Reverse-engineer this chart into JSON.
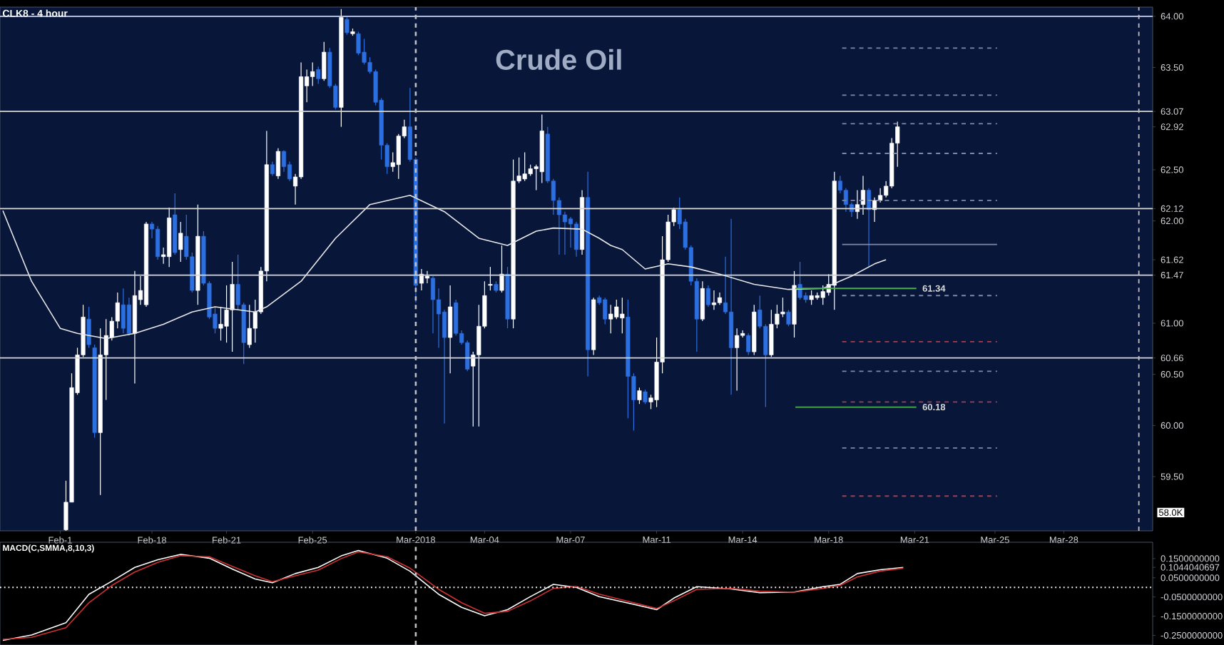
{
  "chart_data": [
    {
      "type": "candlestick",
      "title": "Crude Oil",
      "subtitle": "CLK8 - 4 hour",
      "categories": [
        null,
        null,
        null,
        null,
        null,
        null,
        null,
        null,
        null,
        null,
        "Feb-1",
        null,
        null,
        null,
        null,
        null,
        null,
        null,
        null,
        null,
        null,
        null,
        null,
        null,
        null,
        null,
        "Feb-18",
        null,
        null,
        null,
        null,
        null,
        null,
        null,
        null,
        null,
        null,
        null,
        null,
        "Feb-21",
        null,
        null,
        null,
        null,
        null,
        null,
        null,
        null,
        null,
        null,
        null,
        null,
        null,
        null,
        "Feb-25",
        null,
        null,
        null,
        null,
        null,
        null,
        null,
        null,
        null,
        null,
        null,
        null,
        null,
        null,
        null,
        null,
        null,
        "Mar-2018",
        null,
        null,
        null,
        null,
        null,
        null,
        null,
        null,
        null,
        null,
        null,
        "Mar-04",
        null,
        null,
        null,
        null,
        null,
        null,
        null,
        null,
        null,
        null,
        null,
        null,
        null,
        null,
        "Mar-07",
        null,
        null,
        null,
        null,
        null,
        null,
        null,
        null,
        null,
        null,
        null,
        null,
        null,
        null,
        "Mar-11",
        null,
        null,
        null,
        null,
        null,
        null,
        null,
        null,
        null,
        null,
        null,
        null,
        null,
        null,
        "Mar-14",
        null,
        null,
        null,
        null,
        null,
        null,
        null,
        null,
        null,
        null,
        null,
        null,
        null,
        null,
        "Mar-18",
        null,
        null,
        null,
        null,
        null,
        null,
        null,
        null,
        null,
        null,
        null,
        null,
        null,
        null,
        "Mar-21",
        null,
        null,
        null,
        null,
        null,
        null,
        null,
        null,
        null,
        null,
        null,
        null,
        null,
        "Mar-25",
        null,
        null,
        null,
        null,
        null,
        null,
        null,
        null,
        null,
        null,
        null,
        "Mar-28",
        null,
        null,
        null,
        null,
        null,
        null,
        null,
        null,
        null,
        null,
        null,
        null,
        null,
        null,
        null
      ],
      "ohlc": [
        null,
        null,
        null,
        null,
        null,
        null,
        null,
        null,
        null,
        null,
        null,
        [
          58.98,
          59.46,
          58.97,
          59.25
        ],
        [
          59.25,
          60.51,
          59.25,
          60.37
        ],
        [
          60.32,
          60.76,
          60.3,
          60.69
        ],
        [
          60.69,
          61.18,
          60.67,
          61.06
        ],
        [
          61.04,
          61.16,
          60.76,
          60.79
        ],
        [
          60.76,
          60.79,
          59.88,
          59.93
        ],
        [
          59.93,
          60.95,
          59.32,
          60.69
        ],
        [
          60.69,
          61.04,
          60.25,
          60.88
        ],
        [
          60.86,
          61.06,
          60.83,
          61.02
        ],
        [
          61.02,
          61.3,
          60.95,
          61.2
        ],
        [
          61.18,
          61.34,
          60.9,
          60.95
        ],
        [
          61.18,
          61.25,
          60.88,
          60.9
        ],
        [
          60.9,
          61.51,
          60.41,
          61.27
        ],
        [
          61.23,
          61.46,
          61.18,
          61.32
        ],
        [
          61.18,
          61.99,
          61.16,
          61.97
        ],
        [
          61.97,
          61.99,
          61.83,
          61.92
        ],
        [
          61.92,
          61.95,
          61.62,
          61.65
        ],
        [
          61.65,
          61.74,
          61.58,
          61.67
        ],
        [
          61.65,
          62.13,
          61.55,
          62.03
        ],
        [
          62.06,
          62.27,
          61.67,
          61.69
        ],
        [
          61.72,
          61.99,
          61.6,
          61.88
        ],
        [
          61.85,
          62.06,
          61.62,
          61.65
        ],
        [
          61.65,
          61.69,
          61.3,
          61.32
        ],
        [
          61.32,
          62.16,
          61.18,
          61.85
        ],
        [
          61.85,
          61.9,
          61.37,
          61.39
        ],
        [
          61.39,
          61.41,
          61.04,
          61.06
        ],
        [
          61.09,
          61.16,
          60.9,
          60.95
        ],
        [
          60.95,
          61.16,
          60.83,
          60.99
        ],
        [
          60.97,
          61.37,
          60.81,
          61.13
        ],
        [
          61.13,
          61.6,
          60.72,
          61.38
        ],
        [
          61.38,
          61.67,
          61.13,
          61.18
        ],
        [
          61.18,
          61.2,
          60.6,
          60.81
        ],
        [
          60.79,
          61.18,
          60.76,
          60.95
        ],
        [
          60.95,
          61.23,
          60.81,
          61.11
        ],
        [
          61.11,
          61.55,
          61.09,
          61.51
        ],
        [
          61.51,
          62.88,
          61.41,
          62.55
        ],
        [
          62.55,
          62.58,
          62.44,
          62.46
        ],
        [
          62.44,
          62.71,
          62.41,
          62.68
        ],
        [
          62.68,
          62.69,
          62.48,
          62.53
        ],
        [
          62.55,
          62.58,
          62.39,
          62.41
        ],
        [
          62.34,
          62.46,
          62.16,
          62.43
        ],
        [
          62.43,
          63.55,
          62.41,
          63.41
        ],
        [
          63.32,
          63.48,
          63.16,
          63.41
        ],
        [
          63.41,
          63.55,
          63.32,
          63.46
        ],
        [
          63.48,
          63.51,
          63.34,
          63.39
        ],
        [
          63.39,
          63.75,
          63.37,
          63.65
        ],
        [
          63.65,
          63.69,
          63.3,
          63.32
        ],
        [
          63.32,
          63.34,
          63.09,
          63.11
        ],
        [
          63.11,
          64.07,
          62.92,
          63.99
        ],
        [
          63.97,
          63.99,
          63.82,
          63.84
        ],
        [
          63.83,
          63.88,
          63.81,
          63.85
        ],
        [
          63.83,
          63.85,
          63.62,
          63.64
        ],
        [
          63.65,
          63.78,
          63.53,
          63.55
        ],
        [
          63.55,
          63.6,
          63.44,
          63.46
        ],
        [
          63.46,
          63.48,
          63.13,
          63.16
        ],
        [
          63.18,
          63.2,
          62.6,
          62.74
        ],
        [
          62.74,
          62.76,
          62.46,
          62.53
        ],
        [
          62.53,
          62.67,
          62.48,
          62.57
        ],
        [
          62.55,
          62.85,
          62.41,
          62.83
        ],
        [
          62.83,
          62.99,
          62.81,
          62.92
        ],
        [
          62.92,
          63.3,
          62.58,
          62.6
        ],
        [
          62.6,
          62.62,
          61.2,
          61.37
        ],
        [
          61.39,
          61.53,
          61.32,
          61.48
        ],
        [
          61.44,
          61.51,
          61.39,
          61.46
        ],
        [
          61.44,
          61.46,
          60.9,
          61.23
        ],
        [
          61.23,
          61.34,
          60.76,
          61.09
        ],
        [
          61.11,
          61.13,
          60.02,
          60.86
        ],
        [
          60.86,
          61.37,
          60.51,
          61.16
        ],
        [
          61.2,
          61.23,
          60.88,
          60.9
        ],
        [
          60.9,
          60.93,
          60.79,
          60.81
        ],
        [
          60.81,
          60.83,
          60.53,
          60.55
        ],
        [
          60.58,
          60.72,
          59.99,
          60.69
        ],
        [
          60.69,
          61.18,
          59.99,
          60.97
        ],
        [
          60.97,
          61.41,
          60.95,
          61.27
        ],
        [
          61.37,
          61.55,
          61.32,
          61.38
        ],
        [
          61.38,
          61.41,
          61.3,
          61.32
        ],
        [
          61.32,
          61.76,
          61.3,
          61.48
        ],
        [
          61.48,
          61.55,
          60.95,
          61.04
        ],
        [
          61.04,
          62.6,
          60.95,
          62.39
        ],
        [
          62.39,
          62.62,
          62.37,
          62.44
        ],
        [
          62.41,
          62.67,
          62.39,
          62.46
        ],
        [
          62.46,
          62.55,
          62.44,
          62.51
        ],
        [
          62.51,
          62.55,
          62.3,
          62.53
        ],
        [
          62.48,
          63.04,
          62.37,
          62.88
        ],
        [
          62.85,
          62.92,
          62.37,
          62.39
        ],
        [
          62.39,
          62.41,
          62.06,
          62.2
        ],
        [
          62.2,
          62.23,
          61.67,
          62.06
        ],
        [
          62.06,
          62.09,
          61.67,
          61.99
        ],
        [
          62.02,
          62.04,
          61.74,
          61.97
        ],
        [
          61.97,
          61.99,
          61.65,
          61.72
        ],
        [
          61.72,
          62.3,
          61.67,
          62.23
        ],
        [
          62.23,
          62.48,
          60.48,
          60.74
        ],
        [
          60.74,
          61.25,
          60.69,
          61.23
        ],
        [
          61.25,
          61.27,
          61.18,
          61.2
        ],
        [
          61.23,
          61.25,
          60.99,
          61.04
        ],
        [
          61.04,
          61.18,
          60.9,
          61.09
        ],
        [
          61.06,
          61.23,
          61.04,
          61.16
        ],
        [
          61.05,
          61.25,
          60.9,
          61.09
        ],
        [
          61.06,
          61.23,
          60.07,
          60.48
        ],
        [
          60.48,
          60.51,
          59.95,
          60.25
        ],
        [
          60.25,
          60.37,
          60.21,
          60.34
        ],
        [
          60.33,
          60.35,
          60.21,
          60.23
        ],
        [
          60.23,
          60.3,
          60.16,
          60.27
        ],
        [
          60.25,
          60.86,
          60.18,
          60.62
        ],
        [
          60.62,
          61.85,
          60.51,
          61.62
        ],
        [
          61.62,
          62.06,
          61.6,
          61.99
        ],
        [
          61.99,
          62.13,
          61.95,
          62.11
        ],
        [
          62.11,
          62.23,
          61.92,
          61.97
        ],
        [
          61.99,
          62.02,
          61.72,
          61.74
        ],
        [
          61.74,
          61.76,
          61.37,
          61.41
        ],
        [
          61.41,
          61.44,
          60.72,
          61.04
        ],
        [
          61.04,
          61.41,
          61.02,
          61.34
        ],
        [
          61.34,
          61.37,
          61.16,
          61.18
        ],
        [
          61.18,
          61.32,
          61.13,
          61.2
        ],
        [
          61.2,
          61.3,
          61.18,
          61.25
        ],
        [
          61.2,
          61.65,
          61.09,
          61.11
        ],
        [
          61.11,
          62.02,
          60.3,
          60.76
        ],
        [
          60.76,
          60.95,
          60.34,
          60.88
        ],
        [
          60.88,
          60.93,
          60.86,
          60.9
        ],
        [
          60.88,
          60.9,
          60.69,
          60.72
        ],
        [
          60.72,
          61.18,
          60.69,
          61.11
        ],
        [
          61.13,
          61.27,
          60.95,
          60.97
        ],
        [
          60.97,
          60.99,
          60.18,
          60.69
        ],
        [
          60.69,
          61.13,
          60.67,
          60.99
        ],
        [
          60.99,
          61.18,
          60.95,
          61.09
        ],
        [
          61.09,
          61.25,
          61.06,
          61.11
        ],
        [
          61.11,
          61.13,
          60.97,
          60.99
        ],
        [
          60.99,
          61.51,
          60.86,
          61.37
        ],
        [
          61.38,
          61.6,
          61.23,
          61.25
        ],
        [
          61.27,
          61.3,
          61.2,
          61.23
        ],
        [
          61.23,
          61.32,
          61.18,
          61.27
        ],
        [
          61.25,
          61.3,
          61.23,
          61.27
        ],
        [
          61.25,
          61.37,
          61.18,
          61.31
        ],
        [
          61.3,
          61.48,
          61.27,
          61.38
        ],
        [
          61.37,
          62.48,
          61.13,
          62.39
        ],
        [
          62.39,
          62.44,
          62.27,
          62.3
        ],
        [
          62.3,
          62.32,
          62.09,
          62.16
        ],
        [
          62.16,
          62.18,
          62.04,
          62.09
        ],
        [
          62.09,
          62.3,
          62.02,
          62.16
        ],
        [
          62.16,
          62.44,
          62.06,
          62.3
        ],
        [
          62.3,
          62.32,
          61.55,
          62.11
        ],
        [
          62.11,
          62.23,
          61.99,
          62.2
        ],
        [
          62.2,
          62.32,
          62.18,
          62.25
        ],
        [
          62.25,
          62.39,
          62.23,
          62.34
        ],
        [
          62.34,
          62.81,
          62.32,
          62.76
        ],
        [
          62.76,
          62.97,
          62.53,
          62.92
        ],
        null,
        null,
        null,
        null,
        null,
        null,
        null,
        null,
        null,
        null,
        null,
        null,
        null,
        null,
        null,
        null,
        null,
        null,
        null,
        null,
        null,
        null,
        null,
        null,
        null,
        null,
        null,
        null,
        null,
        null,
        null,
        null,
        null,
        null,
        null,
        null,
        null,
        null,
        null,
        null,
        null,
        null,
        null,
        null
      ],
      "colors": [
        null,
        null,
        null,
        null,
        null,
        null,
        null,
        null,
        null,
        null,
        null,
        "#ffffff",
        "#ffffff",
        "#ffffff",
        "#ffffff",
        "#2b6fe0",
        "#2b6fe0",
        "#ffffff",
        "#ffffff",
        "#ffffff",
        "#ffffff",
        "#2b6fe0",
        "#2b6fe0",
        "#ffffff",
        "#ffffff",
        "#ffffff",
        "#2b6fe0",
        "#2b6fe0",
        "#ffffff",
        "#ffffff",
        "#2b6fe0",
        "#ffffff",
        "#2b6fe0",
        "#2b6fe0",
        "#ffffff",
        "#2b6fe0",
        "#2b6fe0",
        "#2b6fe0",
        "#ffffff",
        "#ffffff",
        "#ffffff",
        "#2b6fe0",
        "#2b6fe0",
        "#ffffff",
        "#ffffff",
        "#ffffff",
        "#ffffff",
        "#2b6fe0",
        "#ffffff",
        "#2b6fe0",
        "#2b6fe0",
        "#ffffff",
        "#ffffff",
        "#ffffff",
        "#ffffff",
        "#2b6fe0",
        "#ffffff",
        "#2b6fe0",
        "#2b6fe0",
        "#ffffff",
        "#2b6fe0",
        "#ffffff",
        "#2b6fe0",
        "#2b6fe0",
        "#2b6fe0",
        "#2b6fe0",
        "#2b6fe0",
        "#2b6fe0",
        "#ffffff",
        "#ffffff",
        "#ffffff",
        "#2b6fe0",
        "#2b6fe0",
        "#ffffff",
        "#ffffff",
        "#2b6fe0",
        "#2b6fe0",
        "#2b6fe0",
        "#ffffff",
        "#2b6fe0",
        "#2b6fe0",
        "#2b6fe0",
        "#ffffff",
        "#ffffff",
        "#ffffff",
        "#ffffff",
        "#2b6fe0",
        "#ffffff",
        "#2b6fe0",
        "#ffffff",
        "#ffffff",
        "#ffffff",
        "#ffffff",
        "#ffffff",
        "#ffffff",
        "#2b6fe0",
        "#2b6fe0",
        "#2b6fe0",
        "#2b6fe0",
        "#2b6fe0",
        "#2b6fe0",
        "#ffffff",
        "#2b6fe0",
        "#ffffff",
        "#2b6fe0",
        "#2b6fe0",
        "#ffffff",
        "#ffffff",
        "#ffffff",
        "#2b6fe0",
        "#2b6fe0",
        "#ffffff",
        "#2b6fe0",
        "#ffffff",
        "#ffffff",
        "#ffffff",
        "#ffffff",
        "#ffffff",
        "#2b6fe0",
        "#2b6fe0",
        "#2b6fe0",
        "#2b6fe0",
        "#ffffff",
        "#2b6fe0",
        "#ffffff",
        "#ffffff",
        "#2b6fe0",
        "#2b6fe0",
        "#ffffff",
        "#ffffff",
        "#2b6fe0",
        "#ffffff",
        "#2b6fe0",
        "#2b6fe0",
        "#ffffff",
        "#ffffff",
        "#ffffff",
        "#2b6fe0",
        "#ffffff",
        "#2b6fe0",
        "#2b6fe0",
        "#ffffff",
        "#ffffff",
        "#ffffff",
        "#ffffff",
        "#ffffff",
        "#2b6fe0",
        "#2b6fe0",
        "#2b6fe0",
        "#ffffff",
        "#ffffff",
        "#2b6fe0",
        "#ffffff",
        "#ffffff",
        "#ffffff",
        "#ffffff",
        "#ffffff",
        null,
        null,
        null,
        null,
        null,
        null,
        null,
        null,
        null,
        null,
        null,
        null,
        null,
        null,
        null,
        null,
        null,
        null,
        null,
        null,
        null,
        null,
        null,
        null,
        null,
        null,
        null,
        null,
        null,
        null,
        null,
        null,
        null,
        null,
        null,
        null,
        null,
        null,
        null,
        null,
        null,
        null,
        null,
        null
      ],
      "series": [
        {
          "type": "line",
          "color": "#e8e8e8",
          "values": [
            62.1,
            null,
            null,
            null,
            null,
            61.41,
            null,
            null,
            null,
            null,
            60.95,
            null,
            null,
            60.9,
            null,
            null,
            null,
            null,
            60.85,
            null,
            null,
            null,
            null,
            60.9,
            null,
            null,
            null,
            null,
            60.99,
            null,
            null,
            null,
            null,
            61.11,
            null,
            null,
            null,
            61.16,
            null,
            null,
            null,
            null,
            null,
            null,
            61.11,
            null,
            61.16,
            null,
            null,
            null,
            null,
            null,
            61.41,
            null,
            null,
            null,
            null,
            null,
            61.83,
            null,
            null,
            null,
            null,
            null,
            62.16,
            null,
            null,
            null,
            null,
            null,
            null,
            62.25,
            null,
            null,
            null,
            null,
            null,
            62.09,
            null,
            null,
            null,
            null,
            null,
            61.83,
            null,
            null,
            null,
            null,
            61.76,
            null,
            null,
            null,
            null,
            61.9,
            null,
            null,
            61.93,
            null,
            null,
            null,
            null,
            61.92,
            null,
            null,
            61.83,
            null,
            61.76,
            null,
            61.72,
            null,
            null,
            null,
            61.53,
            null,
            null,
            null,
            61.58,
            null,
            null,
            null,
            61.55,
            null,
            null,
            null,
            null,
            61.48,
            null,
            null,
            null,
            null,
            null,
            61.38,
            null,
            null,
            null,
            null,
            null,
            61.33,
            null,
            null,
            null,
            null,
            null,
            61.34,
            null,
            null,
            null,
            null,
            61.46,
            null,
            null,
            null,
            61.58,
            null,
            61.62,
            null,
            null,
            null,
            null,
            null,
            null,
            null,
            null,
            null,
            null,
            null,
            null,
            null,
            null,
            null,
            null,
            null,
            null,
            null,
            null,
            null,
            null,
            null,
            null,
            null,
            null,
            null,
            null,
            null,
            null,
            null,
            null,
            null,
            null,
            null,
            null,
            null,
            null,
            null,
            null,
            null,
            null,
            null,
            null,
            null,
            null
          ]
        }
      ],
      "ref_lines": [
        {
          "axis": "y",
          "value": 63.69,
          "color": "#8088a8",
          "line_style": "dashed"
        },
        {
          "axis": "y",
          "value": 63.23,
          "color": "#8088a8",
          "line_style": "dashed"
        },
        {
          "axis": "y",
          "value": 62.95,
          "color": "#8088a8",
          "line_style": "dashed"
        },
        {
          "axis": "y",
          "value": 62.66,
          "color": "#8088a8",
          "line_style": "dashed"
        },
        {
          "axis": "y",
          "value": 62.2,
          "color": "#8088a8",
          "line_style": "dashed"
        },
        {
          "axis": "y",
          "value": 61.77,
          "color": "#8088a8",
          "line_style": "solid"
        },
        {
          "axis": "y",
          "value": 61.27,
          "color": "#8088a8",
          "line_style": "dashed"
        },
        {
          "axis": "y",
          "value": 60.82,
          "color": "#a04050",
          "line_style": "dashed"
        },
        {
          "axis": "y",
          "value": 60.53,
          "color": "#8088a8",
          "line_style": "dashed"
        },
        {
          "axis": "y",
          "value": 60.23,
          "color": "#a04050",
          "line_style": "dashed"
        },
        {
          "axis": "y",
          "value": 59.78,
          "color": "#8088a8",
          "line_style": "dashed"
        },
        {
          "axis": "y",
          "value": 59.31,
          "color": "#a04050",
          "line_style": "dashed"
        },
        {
          "axis": "y",
          "value": 61.34,
          "color": "#4caf50",
          "label": "61.34"
        },
        {
          "axis": "y",
          "value": 60.18,
          "color": "#4caf50",
          "label": "60.18"
        },
        {
          "axis": "y",
          "value": 64.0,
          "color": "#c8d0f0"
        },
        {
          "axis": "y",
          "value": 63.07,
          "color": "#d8d8d8"
        },
        {
          "axis": "y",
          "value": 62.12,
          "color": "#d8d8d8"
        },
        {
          "axis": "y",
          "value": 61.47,
          "color": "#d8d8d8"
        },
        {
          "axis": "y",
          "value": 60.66,
          "color": "#d8d8d8"
        },
        {
          "axis": "x",
          "value": "Mar-2018",
          "color": "#c0c0c0",
          "line_style": "dashed"
        }
      ],
      "annotations": [
        "58.0K"
      ],
      "ylim": [
        58.97,
        64.09
      ],
      "yticks": [
        {
          "value": 64.0,
          "label": "64.00"
        },
        {
          "value": 63.5,
          "label": "63.50"
        },
        {
          "value": 63.07,
          "label": "63.07"
        },
        {
          "value": 62.92,
          "label": "62.92"
        },
        {
          "value": 62.5,
          "label": "62.50"
        },
        {
          "value": 62.12,
          "label": "62.12"
        },
        {
          "value": 62.0,
          "label": "62.00"
        },
        {
          "value": 61.62,
          "label": "61.62"
        },
        {
          "value": 61.47,
          "label": "61.47"
        },
        {
          "value": 61.0,
          "label": "61.00"
        },
        {
          "value": 60.66,
          "label": "60.66"
        },
        {
          "value": 60.5,
          "label": "60.50"
        },
        {
          "value": 60.0,
          "label": "60.00"
        },
        {
          "value": 59.5,
          "label": "59.50"
        }
      ]
    },
    {
      "type": "line",
      "title": "MACD(C,SMMA,8,10,3)",
      "tick_labels": "y",
      "categories": [
        null,
        null,
        null,
        null,
        null,
        null,
        null,
        null,
        null,
        null,
        null,
        null,
        null,
        null,
        null,
        null,
        null,
        null,
        null,
        null,
        null,
        null,
        null,
        null,
        null,
        null,
        null,
        null,
        null,
        null,
        null,
        null,
        null,
        null,
        null,
        null,
        null,
        null,
        null,
        null,
        null,
        null,
        null,
        null,
        null,
        null,
        null,
        null,
        null,
        null,
        null,
        null,
        null,
        null,
        null,
        null,
        null,
        null,
        null,
        null,
        null,
        null,
        null,
        null,
        null,
        null,
        null,
        null,
        null,
        null,
        null,
        null,
        null,
        null,
        null,
        null,
        null,
        null,
        null,
        null,
        null,
        null,
        null,
        null,
        null,
        null,
        null,
        null,
        null,
        null,
        null,
        null,
        null,
        null,
        null,
        null,
        null,
        null,
        null,
        null,
        null,
        null,
        null,
        null,
        null,
        null,
        null,
        null,
        null,
        null,
        null,
        null,
        null,
        null,
        null,
        null,
        null,
        null,
        null,
        null,
        null,
        null,
        null,
        null,
        null,
        null,
        null,
        null,
        null,
        null,
        null,
        null,
        null,
        null,
        null,
        null,
        null,
        null,
        null,
        null,
        null,
        null,
        null,
        null,
        null,
        null,
        null,
        null,
        null,
        null,
        null,
        null,
        null,
        null,
        null,
        null,
        null,
        null,
        null,
        null,
        null,
        null,
        null,
        null,
        null,
        null,
        null,
        null,
        null,
        null,
        null,
        null,
        null,
        null,
        null,
        null,
        null,
        null,
        null,
        null,
        null,
        null,
        null,
        null,
        null,
        null,
        null,
        null,
        null,
        null,
        null,
        null,
        null,
        null,
        null,
        null,
        null,
        null,
        null,
        null,
        null
      ],
      "series": [
        {
          "color": "#ffffff",
          "values": [
            -0.276,
            null,
            null,
            null,
            null,
            -0.248,
            null,
            null,
            null,
            null,
            null,
            -0.184,
            null,
            null,
            null,
            -0.036,
            null,
            null,
            null,
            0.032,
            null,
            null,
            null,
            0.104,
            null,
            null,
            null,
            0.144,
            null,
            null,
            null,
            0.172,
            null,
            null,
            null,
            null,
            0.152,
            null,
            null,
            null,
            0.096,
            null,
            null,
            null,
            0.044,
            null,
            null,
            0.024,
            null,
            null,
            null,
            0.072,
            null,
            null,
            null,
            0.104,
            null,
            null,
            null,
            0.164,
            null,
            null,
            0.192,
            null,
            null,
            null,
            null,
            0.152,
            null,
            null,
            null,
            0.084,
            null,
            null,
            null,
            null,
            -0.036,
            null,
            null,
            null,
            -0.104,
            null,
            null,
            null,
            -0.148,
            null,
            null,
            null,
            -0.116,
            null,
            null,
            null,
            -0.048,
            null,
            null,
            null,
            0.016,
            null,
            null,
            null,
            0,
            null,
            null,
            null,
            -0.048,
            null,
            null,
            null,
            null,
            null,
            -0.088,
            null,
            null,
            null,
            -0.116,
            null,
            null,
            -0.056,
            null,
            null,
            null,
            0.004,
            null,
            null,
            null,
            null,
            null,
            -0.008,
            null,
            null,
            null,
            null,
            -0.028,
            null,
            null,
            null,
            null,
            null,
            -0.024,
            null,
            null,
            null,
            null,
            0.004,
            null,
            null,
            0.016,
            null,
            null,
            0.072,
            null,
            null,
            null,
            0.092,
            null,
            null,
            null,
            0.104,
            null,
            null,
            null,
            null,
            null,
            null,
            null,
            null,
            null,
            null,
            null,
            null,
            null,
            null,
            null,
            null,
            null,
            null,
            null,
            null,
            null,
            null,
            null,
            null,
            null,
            null,
            null,
            null,
            null,
            null,
            null,
            null,
            null,
            null,
            null,
            null,
            null,
            null,
            null,
            null,
            null,
            null,
            null
          ]
        },
        {
          "color": "#d03030",
          "values": [
            -0.27,
            null,
            null,
            null,
            null,
            -0.26,
            null,
            null,
            null,
            null,
            null,
            -0.21,
            null,
            null,
            null,
            -0.08,
            null,
            null,
            null,
            0.01,
            null,
            null,
            null,
            0.08,
            null,
            null,
            null,
            0.13,
            null,
            null,
            null,
            0.165,
            null,
            null,
            null,
            null,
            0.16,
            null,
            null,
            null,
            0.11,
            null,
            null,
            null,
            0.06,
            null,
            null,
            0.03,
            null,
            null,
            null,
            0.06,
            null,
            null,
            null,
            0.09,
            null,
            null,
            null,
            0.15,
            null,
            null,
            0.185,
            null,
            null,
            null,
            null,
            0.16,
            null,
            null,
            null,
            0.1,
            null,
            null,
            null,
            null,
            -0.01,
            null,
            null,
            null,
            -0.08,
            null,
            null,
            null,
            -0.135,
            null,
            null,
            null,
            -0.125,
            null,
            null,
            null,
            -0.07,
            null,
            null,
            null,
            -0.005,
            null,
            null,
            null,
            0.005,
            null,
            null,
            null,
            -0.035,
            null,
            null,
            null,
            null,
            null,
            -0.08,
            null,
            null,
            null,
            -0.11,
            null,
            null,
            -0.07,
            null,
            null,
            null,
            -0.01,
            null,
            null,
            null,
            null,
            null,
            -0.005,
            null,
            null,
            null,
            null,
            -0.02,
            null,
            null,
            null,
            null,
            null,
            -0.025,
            null,
            null,
            null,
            null,
            -0.005,
            null,
            null,
            0.01,
            null,
            null,
            0.055,
            null,
            null,
            null,
            0.085,
            null,
            null,
            null,
            0.1,
            null,
            null,
            null,
            null,
            null,
            null,
            null,
            null,
            null,
            null,
            null,
            null,
            null,
            null,
            null,
            null,
            null,
            null,
            null,
            null,
            null,
            null,
            null,
            null,
            null,
            null,
            null,
            null,
            null,
            null,
            null,
            null,
            null,
            null,
            null,
            null,
            null,
            null,
            null,
            null,
            null,
            null,
            null
          ]
        }
      ],
      "ref_lines": [
        {
          "axis": "y",
          "value": 0,
          "color": "#ffffff",
          "line_style": "dotted"
        }
      ],
      "ylim": [
        -0.3,
        0.235
      ],
      "yticks": [
        {
          "value": 0.15,
          "label": "0.1500000000"
        },
        {
          "value": 0.1044040697,
          "label": "0.1044040697"
        },
        {
          "value": 0.05,
          "label": "0.0500000000"
        },
        {
          "value": -0.05,
          "label": "-0.0500000000"
        },
        {
          "value": -0.15,
          "label": "-0.1500000000"
        },
        {
          "value": -0.25,
          "label": "-0.2500000000"
        }
      ]
    }
  ]
}
